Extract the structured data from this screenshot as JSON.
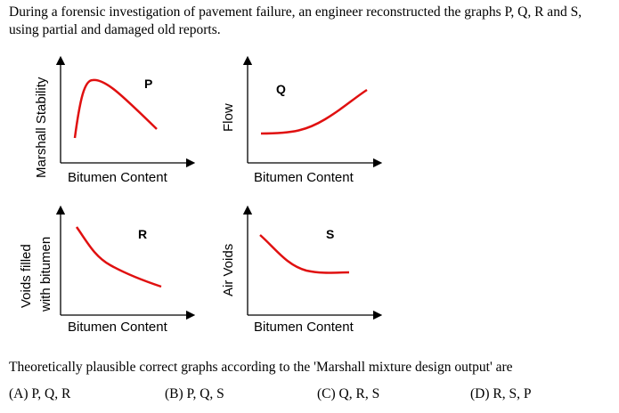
{
  "question": "During a forensic investigation of pavement failure, an engineer reconstructed the graphs P, Q, R and S, using partial and damaged old reports.",
  "graphs": {
    "P": {
      "label": "P",
      "ylabel": "Marshall Stability",
      "xlabel": "Bitumen Content",
      "curve_color": "#e01010"
    },
    "Q": {
      "label": "Q",
      "ylabel": "Flow",
      "xlabel": "Bitumen Content",
      "curve_color": "#e01010"
    },
    "R": {
      "label": "R",
      "ylabel_line1": "Voids filled",
      "ylabel_line2": "with bitumen",
      "xlabel": "Bitumen Content",
      "curve_color": "#e01010"
    },
    "S": {
      "label": "S",
      "ylabel": "Air Voids",
      "xlabel": "Bitumen Content",
      "curve_color": "#e01010"
    }
  },
  "prompt": "Theoretically plausible correct graphs according to the 'Marshall mixture design output' are",
  "options": [
    {
      "key": "A",
      "text": "(A) P, Q, R"
    },
    {
      "key": "B",
      "text": "(B) P, Q, S"
    },
    {
      "key": "C",
      "text": "(C) Q, R, S"
    },
    {
      "key": "D",
      "text": "(D) R, S, P"
    }
  ]
}
